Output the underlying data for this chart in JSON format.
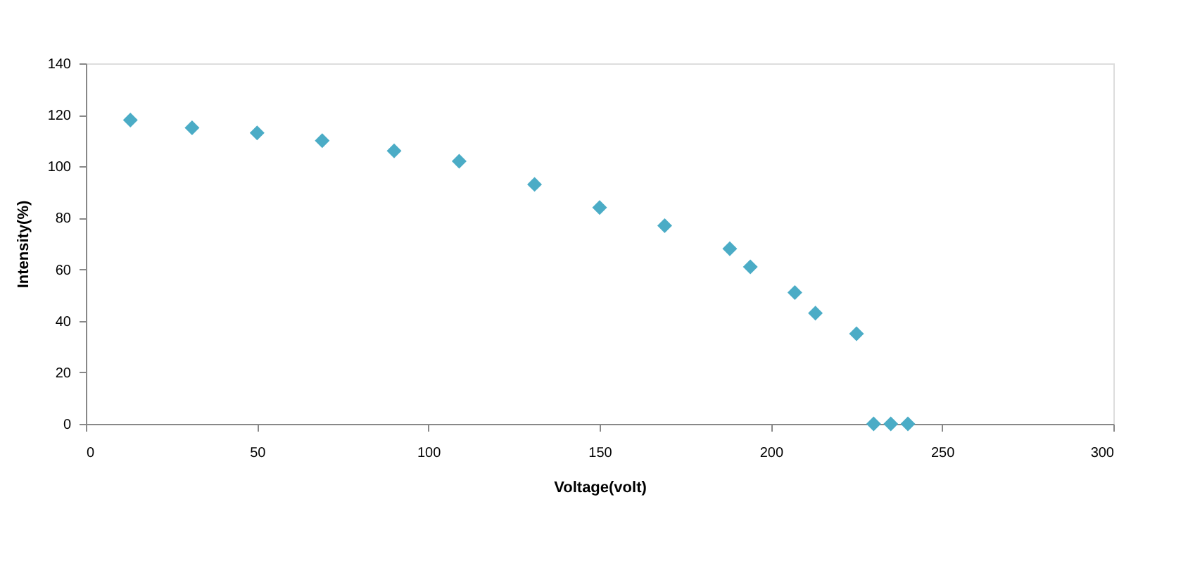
{
  "chart_data": {
    "type": "scatter",
    "xlabel": "Voltage(volt)",
    "ylabel": "Intensity(%)",
    "x": [
      13,
      31,
      50,
      69,
      90,
      109,
      131,
      150,
      169,
      188,
      194,
      207,
      213,
      225,
      230,
      235,
      240
    ],
    "series": [
      {
        "color": "#4bacc6",
        "values": [
          118,
          115,
          113,
          110,
          106,
          102,
          93,
          84,
          77,
          68,
          61,
          51,
          43,
          35,
          0,
          0,
          0
        ]
      }
    ],
    "xlim": [
      0,
      300
    ],
    "xticks": [
      0,
      50,
      100,
      150,
      200,
      250,
      300
    ],
    "ylim": [
      0,
      140
    ],
    "yticks": [
      0,
      20,
      40,
      60,
      80,
      100,
      120,
      140
    ],
    "marker": "diamond",
    "grid": false
  }
}
